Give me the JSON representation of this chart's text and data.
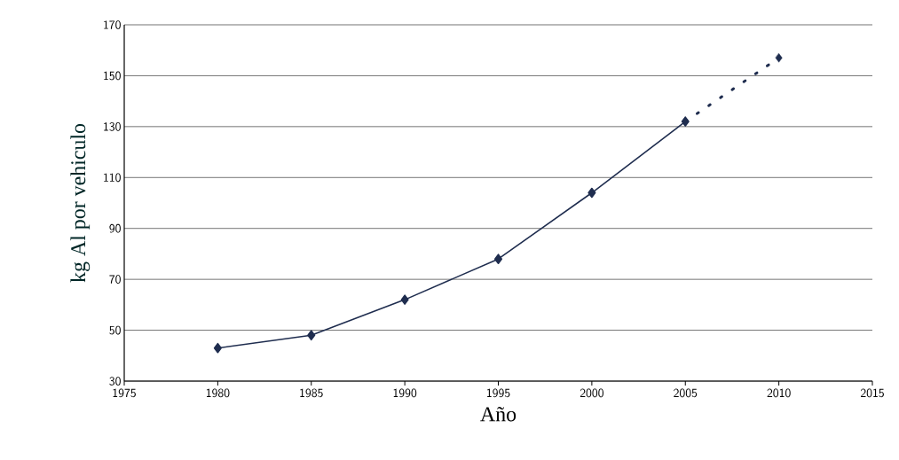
{
  "chart_data": {
    "type": "line",
    "xlabel": "Año",
    "ylabel": "kg Al por vehiculo",
    "xlim": [
      1975,
      2015
    ],
    "xticks": [
      1975,
      1980,
      1985,
      1990,
      1995,
      2000,
      2005,
      2010,
      2015
    ],
    "ylim": [
      30,
      170
    ],
    "yticks": [
      30,
      50,
      70,
      90,
      110,
      130,
      150,
      170
    ],
    "grid": "y",
    "marker": "diamond",
    "series": [
      {
        "x": [
          1980,
          1985,
          1990,
          1995,
          2000,
          2005
        ],
        "values": [
          43,
          48,
          62,
          78,
          104,
          132
        ],
        "color": "#1f2d4f",
        "line_style": "solid"
      },
      {
        "x": [
          2005,
          2010
        ],
        "values": [
          132,
          157
        ],
        "color": "#1f2d4f",
        "line_style": "dotted"
      }
    ]
  }
}
